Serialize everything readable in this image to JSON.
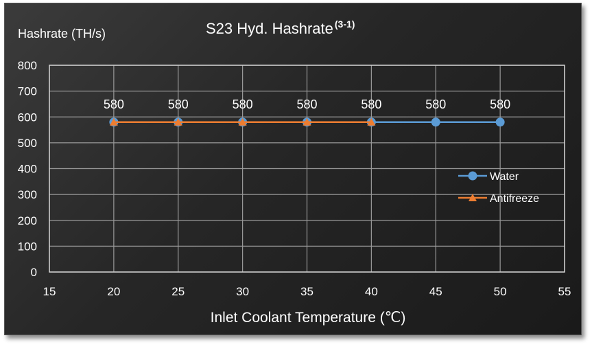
{
  "chart_data": {
    "type": "line",
    "title": "S23 Hyd. Hashrate",
    "title_superscript": "(3-1)",
    "xlabel": "Inlet Coolant Temperature (℃)",
    "ylabel": "Hashrate (TH/s)",
    "xlim": [
      15,
      55
    ],
    "ylim": [
      0,
      800
    ],
    "xticks": [
      15,
      20,
      25,
      30,
      35,
      40,
      45,
      50,
      55
    ],
    "yticks": [
      0,
      100,
      200,
      300,
      400,
      500,
      600,
      700,
      800
    ],
    "grid": true,
    "legend_position": "right",
    "series": [
      {
        "name": "Water",
        "color": "#5b9bd5",
        "marker": "circle",
        "x": [
          20,
          25,
          30,
          35,
          40,
          45,
          50
        ],
        "y": [
          580,
          580,
          580,
          580,
          580,
          580,
          580
        ]
      },
      {
        "name": "Antifreeze",
        "color": "#ed7d31",
        "marker": "triangle",
        "x": [
          20,
          25,
          30,
          35,
          40
        ],
        "y": [
          580,
          580,
          580,
          580,
          580
        ]
      }
    ],
    "data_labels": [
      {
        "x": 20,
        "text": "580"
      },
      {
        "x": 25,
        "text": "580"
      },
      {
        "x": 30,
        "text": "580"
      },
      {
        "x": 35,
        "text": "580"
      },
      {
        "x": 40,
        "text": "580"
      },
      {
        "x": 45,
        "text": "580"
      },
      {
        "x": 50,
        "text": "580"
      }
    ]
  }
}
